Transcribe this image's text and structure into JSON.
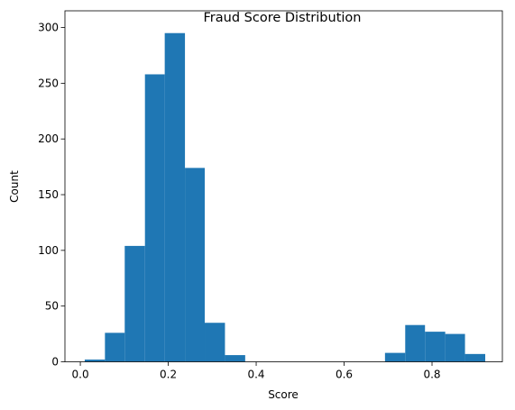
{
  "chart_data": {
    "type": "bar",
    "title": "Fraud Score Distribution",
    "xlabel": "Score",
    "ylabel": "Count",
    "xlim": [
      -0.035,
      0.96
    ],
    "ylim": [
      0,
      315
    ],
    "xticks": [
      0.0,
      0.2,
      0.4,
      0.6,
      0.8
    ],
    "xtick_labels": [
      "0.0",
      "0.2",
      "0.4",
      "0.6",
      "0.8"
    ],
    "yticks": [
      0,
      50,
      100,
      150,
      200,
      250,
      300
    ],
    "ytick_labels": [
      "0",
      "50",
      "100",
      "150",
      "200",
      "250",
      "300"
    ],
    "bar_color": "#1f77b4",
    "grid": false,
    "bins": [
      {
        "x0": 0.01,
        "x1": 0.056,
        "count": 2
      },
      {
        "x0": 0.056,
        "x1": 0.101,
        "count": 26
      },
      {
        "x0": 0.101,
        "x1": 0.147,
        "count": 104
      },
      {
        "x0": 0.147,
        "x1": 0.192,
        "count": 258
      },
      {
        "x0": 0.192,
        "x1": 0.238,
        "count": 295
      },
      {
        "x0": 0.238,
        "x1": 0.283,
        "count": 174
      },
      {
        "x0": 0.283,
        "x1": 0.329,
        "count": 35
      },
      {
        "x0": 0.329,
        "x1": 0.375,
        "count": 6
      },
      {
        "x0": 0.375,
        "x1": 0.42,
        "count": 0
      },
      {
        "x0": 0.42,
        "x1": 0.466,
        "count": 0
      },
      {
        "x0": 0.466,
        "x1": 0.511,
        "count": 0
      },
      {
        "x0": 0.511,
        "x1": 0.557,
        "count": 0
      },
      {
        "x0": 0.557,
        "x1": 0.602,
        "count": 0
      },
      {
        "x0": 0.602,
        "x1": 0.648,
        "count": 0
      },
      {
        "x0": 0.648,
        "x1": 0.693,
        "count": 0
      },
      {
        "x0": 0.693,
        "x1": 0.739,
        "count": 8
      },
      {
        "x0": 0.739,
        "x1": 0.784,
        "count": 33
      },
      {
        "x0": 0.784,
        "x1": 0.83,
        "count": 27
      },
      {
        "x0": 0.83,
        "x1": 0.875,
        "count": 25
      },
      {
        "x0": 0.875,
        "x1": 0.921,
        "count": 7
      }
    ]
  }
}
